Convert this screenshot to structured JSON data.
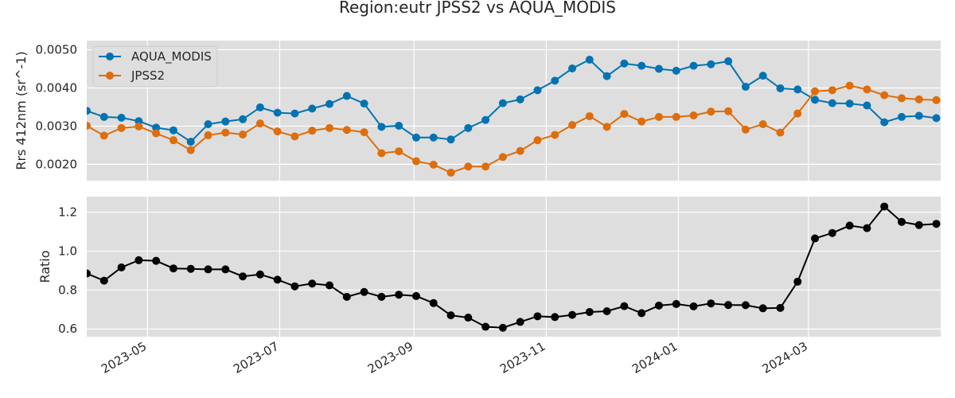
{
  "chart_data": {
    "type": "line",
    "title": "Region:eutr JPSS2 vs AQUA_MODIS",
    "x_dates": [
      "2023-04-03",
      "2023-04-11",
      "2023-04-19",
      "2023-04-27",
      "2023-05-05",
      "2023-05-13",
      "2023-05-21",
      "2023-05-29",
      "2023-06-06",
      "2023-06-14",
      "2023-06-22",
      "2023-06-30",
      "2023-07-08",
      "2023-07-16",
      "2023-07-24",
      "2023-08-01",
      "2023-08-09",
      "2023-08-17",
      "2023-08-25",
      "2023-09-02",
      "2023-09-10",
      "2023-09-18",
      "2023-09-26",
      "2023-10-04",
      "2023-10-12",
      "2023-10-20",
      "2023-10-28",
      "2023-11-05",
      "2023-11-13",
      "2023-11-21",
      "2023-11-29",
      "2023-12-07",
      "2023-12-15",
      "2023-12-23",
      "2023-12-31",
      "2024-01-08",
      "2024-01-16",
      "2024-01-24",
      "2024-02-01",
      "2024-02-09",
      "2024-02-17",
      "2024-02-25",
      "2024-03-04",
      "2024-03-12",
      "2024-03-20",
      "2024-03-28",
      "2024-04-05",
      "2024-04-13",
      "2024-04-21",
      "2024-04-29"
    ],
    "xticks": [
      "2023-05",
      "2023-07",
      "2023-09",
      "2023-11",
      "2024-01",
      "2024-03"
    ],
    "panels": [
      {
        "ylabel": "Rrs 412nm (sr^-1)",
        "ylim": [
          0.00157,
          0.00524
        ],
        "yticks": [
          0.002,
          0.003,
          0.004,
          0.005
        ],
        "ytick_labels": [
          "0.0020",
          "0.0030",
          "0.0040",
          "0.0050"
        ],
        "legend": "top-left",
        "series": [
          {
            "name": "AQUA_MODIS",
            "color": "#0173b2",
            "values": [
              0.0034,
              0.00324,
              0.00322,
              0.00313,
              0.00296,
              0.00289,
              0.00259,
              0.00305,
              0.00312,
              0.00318,
              0.00349,
              0.00335,
              0.00333,
              0.00346,
              0.00358,
              0.00379,
              0.00359,
              0.00298,
              0.00301,
              0.0027,
              0.0027,
              0.00265,
              0.00295,
              0.00316,
              0.0036,
              0.0037,
              0.00394,
              0.00419,
              0.00451,
              0.00474,
              0.00431,
              0.00464,
              0.00458,
              0.0045,
              0.00445,
              0.00458,
              0.00462,
              0.0047,
              0.00403,
              0.00432,
              0.00399,
              0.00396,
              0.00369,
              0.0036,
              0.00359,
              0.00354,
              0.0031,
              0.00324,
              0.00327,
              0.00321
            ]
          },
          {
            "name": "JPSS2",
            "color": "#de6d0c",
            "values": [
              0.00301,
              0.00275,
              0.00295,
              0.00299,
              0.00281,
              0.00263,
              0.00237,
              0.00276,
              0.00283,
              0.00278,
              0.00307,
              0.00286,
              0.00273,
              0.00288,
              0.00295,
              0.0029,
              0.00284,
              0.00229,
              0.00234,
              0.00208,
              0.00199,
              0.00178,
              0.00194,
              0.00194,
              0.00219,
              0.00235,
              0.00263,
              0.00277,
              0.00303,
              0.00326,
              0.00298,
              0.00332,
              0.00312,
              0.00324,
              0.00324,
              0.00328,
              0.00338,
              0.00339,
              0.00291,
              0.00305,
              0.00283,
              0.00333,
              0.00391,
              0.00394,
              0.00406,
              0.00396,
              0.00381,
              0.00373,
              0.0037,
              0.00368
            ]
          }
        ]
      },
      {
        "ylabel": "Ratio",
        "ylim": [
          0.56,
          1.28
        ],
        "yticks": [
          0.6,
          0.8,
          1.0,
          1.2
        ],
        "ytick_labels": [
          "0.6",
          "0.8",
          "1.0",
          "1.2"
        ],
        "series": [
          {
            "color": "#000000",
            "values": [
              0.885,
              0.848,
              0.916,
              0.953,
              0.95,
              0.911,
              0.909,
              0.906,
              0.906,
              0.87,
              0.88,
              0.853,
              0.819,
              0.833,
              0.824,
              0.765,
              0.79,
              0.765,
              0.776,
              0.769,
              0.733,
              0.67,
              0.658,
              0.611,
              0.606,
              0.636,
              0.665,
              0.661,
              0.672,
              0.687,
              0.691,
              0.717,
              0.681,
              0.72,
              0.728,
              0.716,
              0.731,
              0.723,
              0.722,
              0.706,
              0.708,
              0.843,
              1.065,
              1.093,
              1.131,
              1.118,
              1.229,
              1.15,
              1.134,
              1.14
            ]
          }
        ]
      }
    ],
    "grid": true
  },
  "colors": {
    "plot_background": "#dedede",
    "grid": "#ffffff"
  }
}
